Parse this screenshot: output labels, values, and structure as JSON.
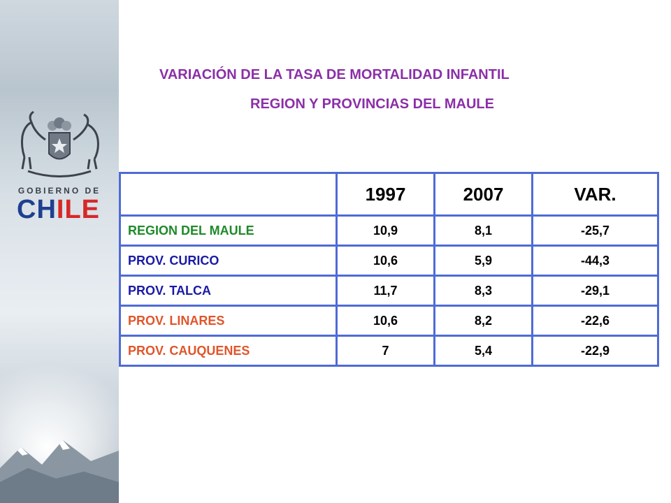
{
  "logo": {
    "gov_text": "GOBIERNO DE",
    "chile_text": "CHILE"
  },
  "title": {
    "line1": "VARIACIÓN DE LA TASA DE MORTALIDAD INFANTIL",
    "line2": "REGION Y PROVINCIAS DEL MAULE"
  },
  "table": {
    "headers": [
      "",
      "1997",
      "2007",
      "VAR."
    ],
    "rows": [
      {
        "label": "REGION DEL MAULE",
        "v1997": "10,9",
        "v2007": "8,1",
        "var": "-25,7",
        "color": "#1f8a2a"
      },
      {
        "label": "PROV. CURICO",
        "v1997": "10,6",
        "v2007": "5,9",
        "var": "-44,3",
        "color": "#1a1aa6"
      },
      {
        "label": "PROV. TALCA",
        "v1997": "11,7",
        "v2007": "8,3",
        "var": "-29,1",
        "color": "#1a1aa6"
      },
      {
        "label": "PROV. LINARES",
        "v1997": "10,6",
        "v2007": "8,2",
        "var": "-22,6",
        "color": "#e0552a"
      },
      {
        "label": "PROV. CAUQUENES",
        "v1997": "7",
        "v2007": "5,4",
        "var": "-22,9",
        "color": "#e0552a"
      }
    ]
  },
  "colors": {
    "title": "#8b2fa8",
    "table_border": "#4f6bd6"
  }
}
